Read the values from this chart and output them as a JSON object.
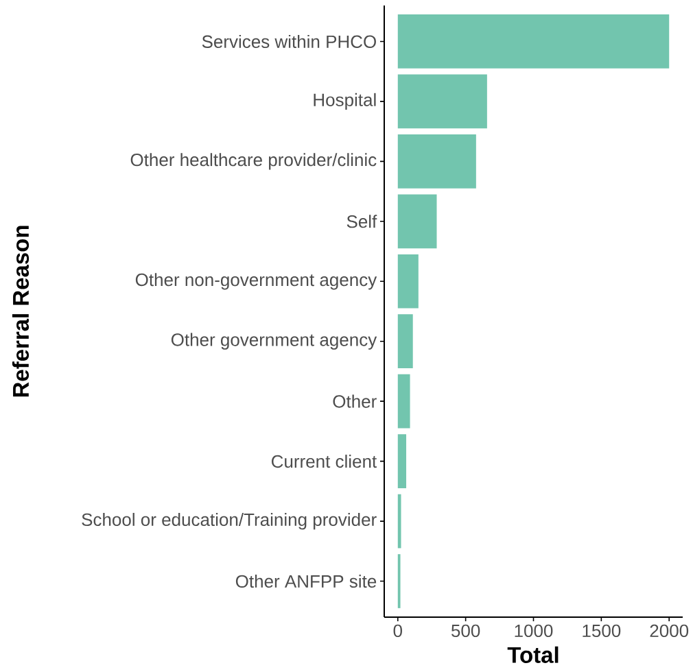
{
  "chart_data": {
    "type": "bar",
    "orientation": "horizontal",
    "xlabel": "Total",
    "ylabel": "Referral Reason",
    "categories": [
      "Services within PHCO",
      "Hospital",
      "Other healthcare provider/clinic",
      "Self",
      "Other non-government agency",
      "Other government agency",
      "Other",
      "Current client",
      "School or education/Training provider",
      "Other ANFPP site"
    ],
    "values": [
      2000,
      658,
      577,
      287,
      152,
      111,
      90,
      62,
      24,
      19
    ],
    "color": "#72c5ae",
    "xlim": [
      -100,
      2100
    ],
    "xticks": [
      0,
      500,
      1000,
      1500,
      2000
    ],
    "grid": false
  }
}
